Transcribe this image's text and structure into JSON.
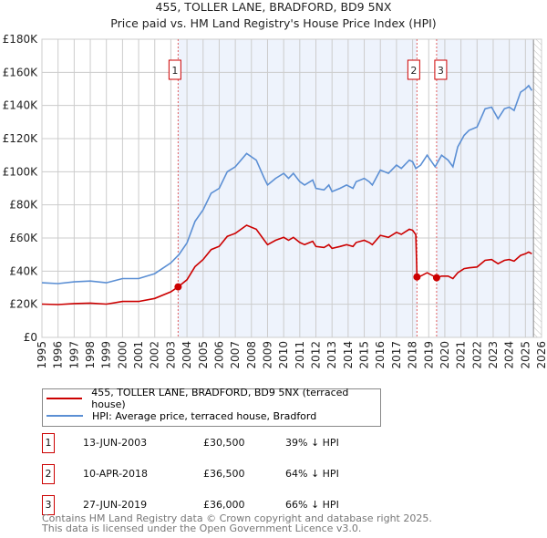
{
  "title_line1": "455, TOLLER LANE, BRADFORD, BD9 5NX",
  "title_line2": "Price paid vs. HM Land Registry's House Price Index (HPI)",
  "chart_data": {
    "type": "line",
    "title": "455, TOLLER LANE, BRADFORD, BD9 5NX — Price paid vs. HM Land Registry's House Price Index (HPI)",
    "xlim": [
      1995,
      2026
    ],
    "ylim": [
      0,
      180000
    ],
    "y_ticks": [
      0,
      20000,
      40000,
      60000,
      80000,
      100000,
      120000,
      140000,
      160000,
      180000
    ],
    "y_tick_labels": [
      "£0",
      "£20K",
      "£40K",
      "£60K",
      "£80K",
      "£100K",
      "£120K",
      "£140K",
      "£160K",
      "£180K"
    ],
    "x_ticks": [
      1995,
      1996,
      1997,
      1998,
      1999,
      2000,
      2001,
      2002,
      2003,
      2004,
      2005,
      2006,
      2007,
      2008,
      2009,
      2010,
      2011,
      2012,
      2013,
      2014,
      2015,
      2016,
      2017,
      2018,
      2019,
      2020,
      2021,
      2022,
      2023,
      2024,
      2025,
      2026
    ],
    "x_tick_labels": [
      "1995",
      "1996",
      "1997",
      "1998",
      "1999",
      "2000",
      "2001",
      "2002",
      "2003",
      "2004",
      "2005",
      "2006",
      "2007",
      "2008",
      "2009",
      "2010",
      "2011",
      "2012",
      "2013",
      "2014",
      "2015",
      "2016",
      "2017",
      "2018",
      "2019",
      "2020",
      "2021",
      "2022",
      "2023",
      "2024",
      "2025",
      "2026"
    ],
    "grid": true,
    "colors": {
      "property": "#cc0000",
      "hpi": "#5b8fd4",
      "shade": "#eef3fc",
      "marker_line": "#e06060"
    },
    "series": [
      {
        "name": "455, TOLLER LANE, BRADFORD, BD9 5NX (terraced house)",
        "color": "#cc0000",
        "x": [
          1995,
          1996,
          1997,
          1998,
          1999,
          2000,
          2001,
          2002,
          2003,
          2003.45,
          2004,
          2004.5,
          2005,
          2005.5,
          2006,
          2006.5,
          2007,
          2007.7,
          2008.3,
          2008.8,
          2009,
          2009.5,
          2010,
          2010.3,
          2010.6,
          2011,
          2011.3,
          2011.8,
          2012,
          2012.5,
          2012.8,
          2013,
          2013.5,
          2013.9,
          2014.3,
          2014.5,
          2015,
          2015.3,
          2015.5,
          2016,
          2016.5,
          2017,
          2017.3,
          2017.8,
          2018,
          2018.2,
          2018.27,
          2018.5,
          2018.9,
          2019.4,
          2019.49,
          2019.8,
          2020.2,
          2020.5,
          2020.8,
          2021.2,
          2021.5,
          2022,
          2022.5,
          2022.9,
          2023.3,
          2023.7,
          2024,
          2024.3,
          2024.7,
          2025,
          2025.2,
          2025.4
        ],
        "y": [
          20100,
          19800,
          20400,
          20700,
          20100,
          21700,
          21700,
          23500,
          27500,
          30500,
          34800,
          42700,
          47000,
          53000,
          55000,
          61000,
          62800,
          67700,
          65300,
          58600,
          56000,
          58600,
          60400,
          58600,
          60400,
          57300,
          56000,
          58000,
          54900,
          54300,
          56000,
          53700,
          54900,
          56000,
          54900,
          57300,
          58600,
          57300,
          56000,
          61600,
          60400,
          63400,
          62200,
          65300,
          64700,
          62000,
          36500,
          37000,
          39000,
          36500,
          36000,
          37000,
          37000,
          35500,
          39000,
          41500,
          42000,
          42500,
          46500,
          47000,
          44500,
          46500,
          47000,
          46000,
          49500,
          50500,
          51500,
          50500
        ]
      },
      {
        "name": "HPI: Average price, terraced house, Bradford",
        "color": "#5b8fd4",
        "x": [
          1995,
          1996,
          1997,
          1998,
          1999,
          2000,
          2001,
          2002,
          2003,
          2003.5,
          2004,
          2004.5,
          2005,
          2005.5,
          2006,
          2006.5,
          2007,
          2007.7,
          2008.3,
          2008.8,
          2009,
          2009.5,
          2010,
          2010.3,
          2010.6,
          2011,
          2011.3,
          2011.8,
          2012,
          2012.5,
          2012.8,
          2013,
          2013.5,
          2013.9,
          2014.3,
          2014.5,
          2015,
          2015.3,
          2015.5,
          2016,
          2016.5,
          2017,
          2017.3,
          2017.8,
          2018,
          2018.2,
          2018.5,
          2018.9,
          2019.4,
          2019.8,
          2020.2,
          2020.5,
          2020.8,
          2021.2,
          2021.5,
          2022,
          2022.5,
          2022.9,
          2023.3,
          2023.7,
          2024,
          2024.3,
          2024.7,
          2025,
          2025.2,
          2025.4
        ],
        "y": [
          33000,
          32500,
          33500,
          34000,
          33000,
          35500,
          35500,
          38500,
          45000,
          50000,
          57000,
          70000,
          77000,
          87000,
          90000,
          100000,
          103000,
          111000,
          107000,
          96000,
          92000,
          96000,
          99000,
          96000,
          99000,
          94000,
          92000,
          95000,
          90000,
          89000,
          92000,
          88000,
          90000,
          92000,
          90000,
          94000,
          96000,
          94000,
          92000,
          101000,
          99000,
          104000,
          102000,
          107000,
          106000,
          102000,
          104000,
          110000,
          103000,
          110000,
          107000,
          103000,
          115000,
          122000,
          125000,
          127000,
          138000,
          139000,
          132000,
          138000,
          139000,
          137000,
          148000,
          150000,
          152000,
          149000
        ]
      }
    ],
    "sales": [
      {
        "label": "1",
        "x": 2003.45,
        "y": 30500
      },
      {
        "label": "2",
        "x": 2018.27,
        "y": 36500
      },
      {
        "label": "3",
        "x": 2019.49,
        "y": 36000
      }
    ],
    "shaded_ranges": [
      [
        2003.45,
        2018.27
      ],
      [
        2019.49,
        2025.5
      ]
    ],
    "hatched_from": 2025.5
  },
  "legend": {
    "property": "455, TOLLER LANE, BRADFORD, BD9 5NX (terraced house)",
    "hpi": "HPI: Average price, terraced house, Bradford"
  },
  "transactions": [
    {
      "num": "1",
      "date": "13-JUN-2003",
      "price": "£30,500",
      "hpi": "39% ↓ HPI"
    },
    {
      "num": "2",
      "date": "10-APR-2018",
      "price": "£36,500",
      "hpi": "64% ↓ HPI"
    },
    {
      "num": "3",
      "date": "27-JUN-2019",
      "price": "£36,000",
      "hpi": "66% ↓ HPI"
    }
  ],
  "footer": {
    "line1": "Contains HM Land Registry data © Crown copyright and database right 2025.",
    "line2": "This data is licensed under the Open Government Licence v3.0."
  }
}
